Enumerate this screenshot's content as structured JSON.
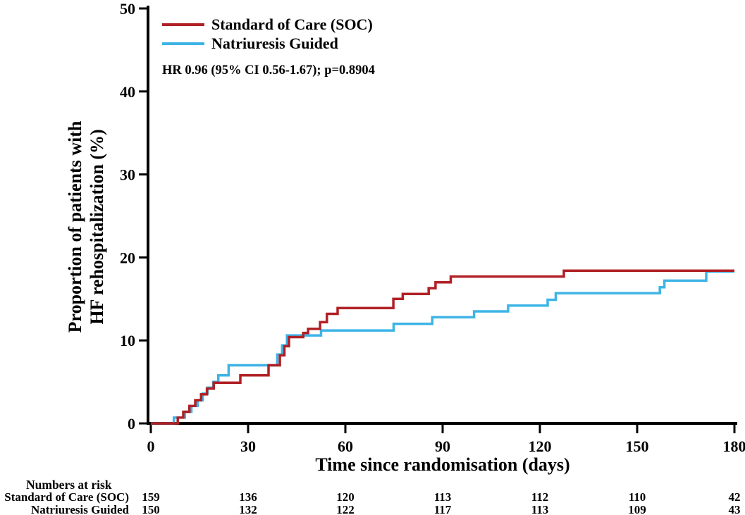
{
  "chart_data": {
    "type": "line",
    "subtype": "kaplan-meier-step-cumulative-incidence",
    "title": "",
    "xlabel": "Time since randomisation (days)",
    "ylabel_lines": [
      "Proportion of patients with",
      "HF rehospitalization (%)"
    ],
    "annotation": "HR 0.96 (95% CI 0.56-1.67); p=0.8904",
    "xlim": [
      0,
      180
    ],
    "ylim": [
      0,
      50
    ],
    "xticks": [
      "0",
      "30",
      "60",
      "90",
      "120",
      "150",
      "180"
    ],
    "yticks": [
      "0",
      "10",
      "20",
      "30",
      "40",
      "50"
    ],
    "grid": false,
    "legend_position": "top-left-inside",
    "axis_color": "#000000",
    "series": [
      {
        "id": "soc",
        "name": "Standard of Care (SOC)",
        "color": "#b02025",
        "points_day_percent": [
          [
            0,
            0
          ],
          [
            8.3,
            0.7
          ],
          [
            10,
            1.4
          ],
          [
            11.9,
            2.1
          ],
          [
            13.7,
            2.8
          ],
          [
            15.5,
            3.5
          ],
          [
            17.3,
            4.2
          ],
          [
            19.4,
            4.9
          ],
          [
            27.6,
            5.8
          ],
          [
            36.3,
            7.0
          ],
          [
            39.8,
            8.2
          ],
          [
            41.2,
            9.3
          ],
          [
            42.6,
            10.4
          ],
          [
            47,
            10.9
          ],
          [
            48.5,
            11.4
          ],
          [
            52.2,
            12.2
          ],
          [
            54.3,
            13.2
          ],
          [
            57.6,
            13.9
          ],
          [
            74.8,
            15.0
          ],
          [
            77.7,
            15.6
          ],
          [
            85.7,
            16.3
          ],
          [
            87.8,
            17.0
          ],
          [
            92.5,
            17.7
          ],
          [
            127.4,
            18.4
          ],
          [
            180,
            18.4
          ]
        ]
      },
      {
        "id": "natriuresis",
        "name": "Natriuresis Guided",
        "color": "#3eb4e6",
        "points_day_percent": [
          [
            0,
            0
          ],
          [
            7.1,
            0.7
          ],
          [
            10.5,
            1.4
          ],
          [
            12.5,
            2.1
          ],
          [
            14.4,
            2.8
          ],
          [
            16,
            3.6
          ],
          [
            17.5,
            4.3
          ],
          [
            19.3,
            5.0
          ],
          [
            20.8,
            5.8
          ],
          [
            24,
            7.0
          ],
          [
            39,
            8.3
          ],
          [
            40.5,
            9.4
          ],
          [
            42,
            10.6
          ],
          [
            52.5,
            11.2
          ],
          [
            74.9,
            12.0
          ],
          [
            86.8,
            12.8
          ],
          [
            99.7,
            13.5
          ],
          [
            110.2,
            14.2
          ],
          [
            122.4,
            14.9
          ],
          [
            124.9,
            15.7
          ],
          [
            157,
            16.4
          ],
          [
            158.4,
            17.2
          ],
          [
            171.3,
            18.3
          ],
          [
            180,
            18.3
          ]
        ]
      }
    ]
  },
  "risk_table": {
    "title": "Numbers at risk",
    "timepoints_days": [
      0,
      30,
      60,
      90,
      120,
      150,
      180
    ],
    "rows": [
      {
        "label": "Standard of Care (SOC)",
        "counts": [
          "159",
          "136",
          "120",
          "113",
          "112",
          "110",
          "42"
        ]
      },
      {
        "label": "Natriuresis Guided",
        "counts": [
          "150",
          "132",
          "122",
          "117",
          "113",
          "109",
          "43"
        ]
      }
    ]
  }
}
